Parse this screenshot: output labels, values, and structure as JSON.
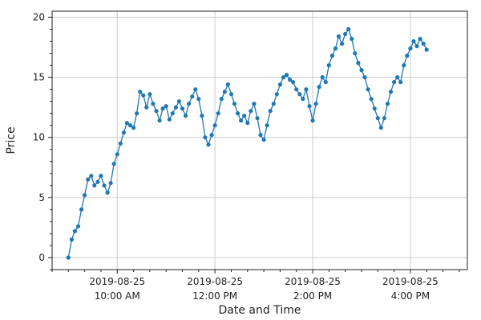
{
  "chart_data": {
    "type": "line",
    "title": "",
    "xlabel": "Date and Time",
    "ylabel": "Price",
    "ylim": [
      -1,
      20.5
    ],
    "xlim": [
      "2019-08-25 08:40",
      "2019-08-25 17:10"
    ],
    "grid": true,
    "legend": "none",
    "x_ticks": [
      {
        "value": "2019-08-25 10:00",
        "line1": "2019-08-25",
        "line2": "10:00 AM"
      },
      {
        "value": "2019-08-25 12:00",
        "line1": "2019-08-25",
        "line2": "12:00 PM"
      },
      {
        "value": "2019-08-25 14:00",
        "line1": "2019-08-25",
        "line2": "2:00 PM"
      },
      {
        "value": "2019-08-25 16:00",
        "line1": "2019-08-25",
        "line2": "4:00 PM"
      }
    ],
    "y_ticks": [
      0,
      5,
      10,
      15,
      20
    ],
    "series": [
      {
        "color": "#1f77b4",
        "marker": "circle",
        "points": [
          [
            "2019-08-25 09:00",
            0.0
          ],
          [
            "2019-08-25 09:04",
            1.5
          ],
          [
            "2019-08-25 09:08",
            2.2
          ],
          [
            "2019-08-25 09:12",
            2.6
          ],
          [
            "2019-08-25 09:16",
            4.0
          ],
          [
            "2019-08-25 09:20",
            5.2
          ],
          [
            "2019-08-25 09:24",
            6.5
          ],
          [
            "2019-08-25 09:28",
            6.8
          ],
          [
            "2019-08-25 09:32",
            6.0
          ],
          [
            "2019-08-25 09:36",
            6.3
          ],
          [
            "2019-08-25 09:40",
            6.8
          ],
          [
            "2019-08-25 09:44",
            6.0
          ],
          [
            "2019-08-25 09:48",
            5.4
          ],
          [
            "2019-08-25 09:52",
            6.2
          ],
          [
            "2019-08-25 09:56",
            7.8
          ],
          [
            "2019-08-25 10:00",
            8.6
          ],
          [
            "2019-08-25 10:04",
            9.5
          ],
          [
            "2019-08-25 10:08",
            10.4
          ],
          [
            "2019-08-25 10:12",
            11.2
          ],
          [
            "2019-08-25 10:16",
            11.0
          ],
          [
            "2019-08-25 10:20",
            10.8
          ],
          [
            "2019-08-25 10:24",
            12.0
          ],
          [
            "2019-08-25 10:28",
            13.8
          ],
          [
            "2019-08-25 10:32",
            13.5
          ],
          [
            "2019-08-25 10:36",
            12.5
          ],
          [
            "2019-08-25 10:40",
            13.6
          ],
          [
            "2019-08-25 10:44",
            12.8
          ],
          [
            "2019-08-25 10:48",
            12.2
          ],
          [
            "2019-08-25 10:52",
            11.4
          ],
          [
            "2019-08-25 10:56",
            12.4
          ],
          [
            "2019-08-25 11:00",
            12.6
          ],
          [
            "2019-08-25 11:04",
            11.5
          ],
          [
            "2019-08-25 11:08",
            12.0
          ],
          [
            "2019-08-25 11:12",
            12.5
          ],
          [
            "2019-08-25 11:16",
            13.0
          ],
          [
            "2019-08-25 11:20",
            12.4
          ],
          [
            "2019-08-25 11:24",
            11.8
          ],
          [
            "2019-08-25 11:28",
            12.8
          ],
          [
            "2019-08-25 11:32",
            13.4
          ],
          [
            "2019-08-25 11:36",
            14.0
          ],
          [
            "2019-08-25 11:40",
            13.2
          ],
          [
            "2019-08-25 11:44",
            11.8
          ],
          [
            "2019-08-25 11:48",
            10.0
          ],
          [
            "2019-08-25 11:52",
            9.4
          ],
          [
            "2019-08-25 11:56",
            10.2
          ],
          [
            "2019-08-25 12:00",
            11.0
          ],
          [
            "2019-08-25 12:04",
            12.0
          ],
          [
            "2019-08-25 12:08",
            13.2
          ],
          [
            "2019-08-25 12:12",
            13.8
          ],
          [
            "2019-08-25 12:16",
            14.4
          ],
          [
            "2019-08-25 12:20",
            13.6
          ],
          [
            "2019-08-25 12:24",
            12.8
          ],
          [
            "2019-08-25 12:28",
            12.0
          ],
          [
            "2019-08-25 12:32",
            11.4
          ],
          [
            "2019-08-25 12:36",
            11.8
          ],
          [
            "2019-08-25 12:40",
            11.2
          ],
          [
            "2019-08-25 12:44",
            12.2
          ],
          [
            "2019-08-25 12:48",
            12.8
          ],
          [
            "2019-08-25 12:52",
            11.6
          ],
          [
            "2019-08-25 12:56",
            10.2
          ],
          [
            "2019-08-25 13:00",
            9.8
          ],
          [
            "2019-08-25 13:04",
            11.0
          ],
          [
            "2019-08-25 13:08",
            12.2
          ],
          [
            "2019-08-25 13:12",
            12.8
          ],
          [
            "2019-08-25 13:16",
            13.6
          ],
          [
            "2019-08-25 13:20",
            14.4
          ],
          [
            "2019-08-25 13:24",
            15.0
          ],
          [
            "2019-08-25 13:28",
            15.2
          ],
          [
            "2019-08-25 13:32",
            14.8
          ],
          [
            "2019-08-25 13:36",
            14.6
          ],
          [
            "2019-08-25 13:40",
            14.0
          ],
          [
            "2019-08-25 13:44",
            13.6
          ],
          [
            "2019-08-25 13:48",
            13.2
          ],
          [
            "2019-08-25 13:52",
            14.0
          ],
          [
            "2019-08-25 13:56",
            12.6
          ],
          [
            "2019-08-25 14:00",
            11.4
          ],
          [
            "2019-08-25 14:04",
            12.8
          ],
          [
            "2019-08-25 14:08",
            14.2
          ],
          [
            "2019-08-25 14:12",
            15.0
          ],
          [
            "2019-08-25 14:16",
            14.6
          ],
          [
            "2019-08-25 14:20",
            16.0
          ],
          [
            "2019-08-25 14:24",
            16.8
          ],
          [
            "2019-08-25 14:28",
            17.4
          ],
          [
            "2019-08-25 14:32",
            18.4
          ],
          [
            "2019-08-25 14:36",
            17.8
          ],
          [
            "2019-08-25 14:40",
            18.6
          ],
          [
            "2019-08-25 14:44",
            19.0
          ],
          [
            "2019-08-25 14:48",
            18.2
          ],
          [
            "2019-08-25 14:52",
            17.0
          ],
          [
            "2019-08-25 14:56",
            16.2
          ],
          [
            "2019-08-25 15:00",
            15.6
          ],
          [
            "2019-08-25 15:04",
            15.0
          ],
          [
            "2019-08-25 15:08",
            14.0
          ],
          [
            "2019-08-25 15:12",
            13.2
          ],
          [
            "2019-08-25 15:16",
            12.4
          ],
          [
            "2019-08-25 15:20",
            11.6
          ],
          [
            "2019-08-25 15:24",
            10.8
          ],
          [
            "2019-08-25 15:28",
            11.6
          ],
          [
            "2019-08-25 15:32",
            12.8
          ],
          [
            "2019-08-25 15:36",
            13.8
          ],
          [
            "2019-08-25 15:40",
            14.6
          ],
          [
            "2019-08-25 15:44",
            15.0
          ],
          [
            "2019-08-25 15:48",
            14.6
          ],
          [
            "2019-08-25 15:52",
            16.0
          ],
          [
            "2019-08-25 15:56",
            16.8
          ],
          [
            "2019-08-25 16:00",
            17.4
          ],
          [
            "2019-08-25 16:04",
            18.0
          ],
          [
            "2019-08-25 16:08",
            17.6
          ],
          [
            "2019-08-25 16:12",
            18.2
          ],
          [
            "2019-08-25 16:16",
            17.8
          ],
          [
            "2019-08-25 16:20",
            17.3
          ]
        ]
      }
    ]
  }
}
